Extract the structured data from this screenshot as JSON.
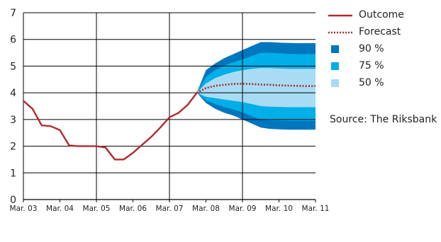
{
  "chart_data": {
    "type": "area",
    "title": "",
    "xlabel": "",
    "ylabel": "",
    "ylim": [
      0,
      7
    ],
    "yticks": [
      0,
      1,
      2,
      3,
      4,
      5,
      6,
      7
    ],
    "xlim": [
      2003.0,
      2011.0
    ],
    "xtick_labels": [
      "Mar. 03",
      "Mar. 04",
      "Mar. 05",
      "Mar. 06",
      "Mar. 07",
      "Mar. 08",
      "Mar. 09",
      "Mar. 10",
      "Mar. 11"
    ],
    "grid": true,
    "legend_position": "right",
    "colors": {
      "outcome": "#b02a30",
      "forecast": "#b02a30",
      "band_90": "#0076be",
      "band_75": "#00aee8",
      "band_50": "#a8dcf5",
      "grid": "#000000"
    },
    "series": [
      {
        "name": "Outcome",
        "style": "solid",
        "x": [
          2003.0,
          2003.25,
          2003.5,
          2003.75,
          2004.0,
          2004.25,
          2004.5,
          2004.75,
          2005.0,
          2005.25,
          2005.5,
          2005.75,
          2006.0,
          2006.25,
          2006.5,
          2006.75,
          2007.0,
          2007.25,
          2007.5,
          2007.75
        ],
        "y": [
          3.7,
          3.4,
          2.78,
          2.75,
          2.6,
          2.03,
          2.0,
          2.0,
          2.0,
          1.95,
          1.5,
          1.5,
          1.75,
          2.05,
          2.35,
          2.7,
          3.08,
          3.25,
          3.55,
          4.0
        ]
      },
      {
        "name": "Forecast",
        "style": "dotted",
        "x": [
          2007.75,
          2008.0,
          2008.25,
          2008.5,
          2008.75,
          2009.0,
          2009.25,
          2009.5,
          2009.75,
          2010.0,
          2010.25,
          2010.5,
          2010.75,
          2011.0
        ],
        "y": [
          4.0,
          4.18,
          4.26,
          4.3,
          4.33,
          4.34,
          4.33,
          4.31,
          4.3,
          4.28,
          4.27,
          4.26,
          4.25,
          4.25
        ]
      }
    ],
    "bands": [
      {
        "name": "90 %",
        "x": [
          2007.75,
          2008.0,
          2008.25,
          2008.5,
          2008.75,
          2009.0,
          2009.25,
          2009.5,
          2009.75,
          2010.0,
          2010.25,
          2010.5,
          2010.75,
          2011.0
        ],
        "lower": [
          4.0,
          3.62,
          3.4,
          3.25,
          3.15,
          3.0,
          2.85,
          2.7,
          2.65,
          2.63,
          2.62,
          2.62,
          2.62,
          2.62
        ],
        "upper": [
          4.0,
          4.85,
          5.1,
          5.3,
          5.45,
          5.6,
          5.75,
          5.9,
          5.9,
          5.88,
          5.87,
          5.86,
          5.86,
          5.86
        ]
      },
      {
        "name": "75 %",
        "x": [
          2007.75,
          2008.0,
          2008.25,
          2008.5,
          2008.75,
          2009.0,
          2009.25,
          2009.5,
          2009.75,
          2010.0,
          2010.25,
          2010.5,
          2010.75,
          2011.0
        ],
        "lower": [
          4.0,
          3.72,
          3.58,
          3.47,
          3.38,
          3.27,
          3.12,
          3.0,
          2.97,
          2.96,
          2.95,
          2.95,
          2.95,
          2.95
        ],
        "upper": [
          4.0,
          4.6,
          4.85,
          5.02,
          5.15,
          5.25,
          5.38,
          5.5,
          5.5,
          5.48,
          5.46,
          5.45,
          5.45,
          5.45
        ]
      },
      {
        "name": "50 %",
        "x": [
          2007.75,
          2008.0,
          2008.25,
          2008.5,
          2008.75,
          2009.0,
          2009.25,
          2009.5,
          2009.75,
          2010.0,
          2010.25,
          2010.5,
          2010.75,
          2011.0
        ],
        "lower": [
          4.0,
          3.85,
          3.8,
          3.75,
          3.7,
          3.65,
          3.58,
          3.5,
          3.48,
          3.47,
          3.46,
          3.46,
          3.46,
          3.46
        ],
        "upper": [
          4.0,
          4.35,
          4.55,
          4.68,
          4.78,
          4.85,
          4.9,
          4.93,
          4.93,
          4.91,
          4.9,
          4.9,
          4.9,
          4.9
        ]
      }
    ],
    "legend": [
      {
        "label": "Outcome",
        "kind": "line",
        "color": "#b02a30"
      },
      {
        "label": "Forecast",
        "kind": "dotted",
        "color": "#b02a30"
      },
      {
        "label": "90 %",
        "kind": "square",
        "color": "#0076be"
      },
      {
        "label": "75 %",
        "kind": "square",
        "color": "#00aee8"
      },
      {
        "label": "50 %",
        "kind": "square",
        "color": "#a8dcf5"
      }
    ],
    "annotations": [
      "Source: The Riksbank"
    ]
  }
}
